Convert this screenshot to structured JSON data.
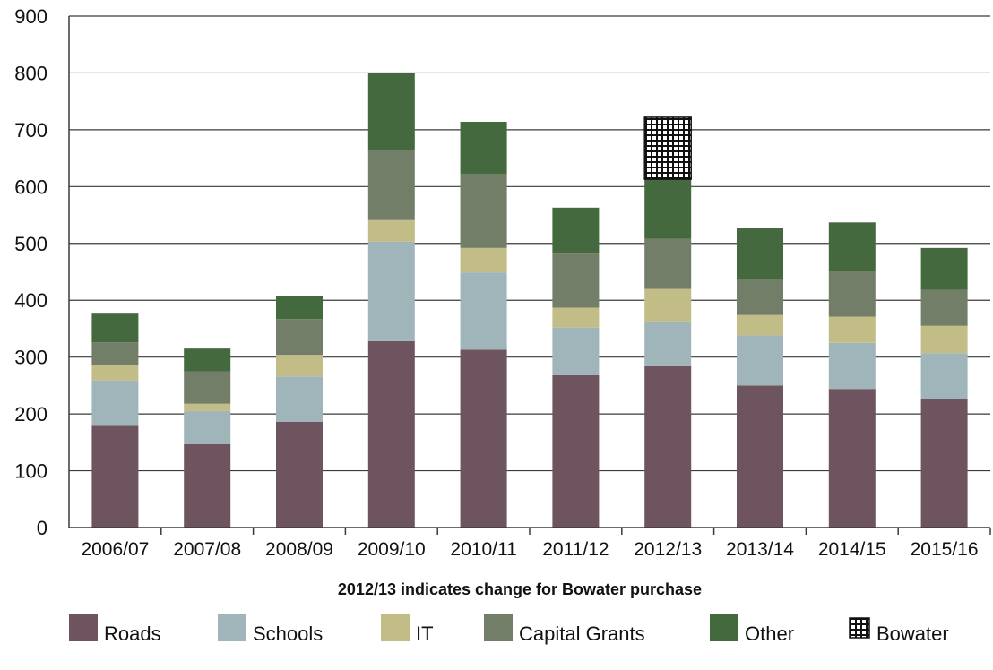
{
  "chart_data": {
    "type": "bar",
    "stacked": true,
    "categories": [
      "2006/07",
      "2007/08",
      "2008/09",
      "2009/10",
      "2010/11",
      "2011/12",
      "2012/13",
      "2013/14",
      "2014/15",
      "2015/16"
    ],
    "series": [
      {
        "name": "Roads",
        "color": "#6e545f",
        "values": [
          179,
          147,
          186,
          328,
          313,
          268,
          284,
          250,
          244,
          226
        ]
      },
      {
        "name": "Schools",
        "color": "#a0b5b9",
        "values": [
          80,
          58,
          80,
          175,
          136,
          84,
          79,
          88,
          81,
          81
        ]
      },
      {
        "name": "IT",
        "color": "#c2bc86",
        "values": [
          27,
          13,
          38,
          38,
          43,
          35,
          57,
          36,
          46,
          48
        ]
      },
      {
        "name": "Capital Grants",
        "color": "#737e69",
        "values": [
          40,
          57,
          63,
          122,
          130,
          95,
          88,
          63,
          80,
          63
        ]
      },
      {
        "name": "Other",
        "color": "#44693f",
        "values": [
          52,
          40,
          40,
          137,
          92,
          81,
          105,
          90,
          86,
          74
        ]
      },
      {
        "name": "Bowater",
        "color": "#111111",
        "pattern": "grid",
        "values": [
          0,
          0,
          0,
          0,
          0,
          0,
          109,
          0,
          0,
          0
        ]
      }
    ],
    "yticks": [
      0,
      100,
      200,
      300,
      400,
      500,
      600,
      700,
      800,
      900
    ],
    "ylim": [
      0,
      900
    ],
    "xlabel": "2012/13 indicates change for Bowater purchase",
    "ylabel": "",
    "title": "",
    "grid": true,
    "legend_position": "bottom"
  }
}
